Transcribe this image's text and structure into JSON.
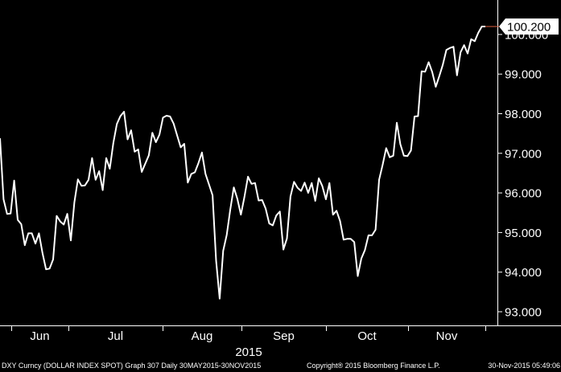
{
  "footer": {
    "left": "DXY Curncy (DOLLAR INDEX SPOT) Graph 307  Daily 30MAY2015-30NOV2015",
    "middle": "Copyright® 2015 Bloomberg Finance L.P.",
    "right": "30-Nov-2015 05:49:06"
  },
  "colors": {
    "background": "#000000",
    "line": "#ffffff",
    "last_box": "#ffffff",
    "last_tick": "#e06040"
  },
  "chart_data": {
    "type": "line",
    "ylim": [
      92.6,
      100.55
    ],
    "yticks": [
      "93.000",
      "94.000",
      "95.000",
      "96.000",
      "97.000",
      "98.000",
      "99.000",
      "100.000"
    ],
    "months": [
      "Jun",
      "Jul",
      "Aug",
      "Sep",
      "Oct",
      "Nov"
    ],
    "year": "2015",
    "last_value_label": "100.200",
    "values": [
      97.38,
      95.84,
      95.47,
      95.48,
      96.31,
      95.32,
      95.21,
      94.68,
      94.98,
      94.98,
      94.72,
      94.98,
      94.48,
      94.07,
      94.09,
      94.32,
      95.42,
      95.28,
      95.2,
      95.47,
      94.8,
      95.76,
      96.34,
      96.18,
      96.19,
      96.33,
      96.88,
      96.33,
      96.55,
      96.07,
      96.88,
      96.61,
      97.26,
      97.74,
      97.94,
      98.05,
      97.35,
      97.58,
      97.04,
      97.1,
      96.53,
      96.74,
      96.95,
      97.52,
      97.28,
      97.47,
      97.9,
      97.95,
      97.93,
      97.75,
      97.45,
      97.15,
      97.24,
      96.26,
      96.48,
      96.52,
      96.75,
      97.02,
      96.48,
      96.21,
      95.94,
      94.29,
      93.33,
      94.54,
      94.94,
      95.58,
      96.14,
      95.85,
      95.45,
      95.9,
      96.41,
      96.23,
      96.25,
      95.81,
      95.82,
      95.6,
      95.23,
      95.18,
      95.43,
      95.53,
      94.57,
      94.85,
      95.91,
      96.28,
      96.13,
      96.05,
      96.26,
      96.0,
      96.25,
      95.8,
      96.37,
      96.17,
      95.84,
      96.25,
      95.45,
      95.55,
      95.29,
      94.82,
      94.84,
      94.84,
      94.76,
      93.9,
      94.34,
      94.56,
      94.93,
      94.93,
      95.07,
      96.33,
      96.71,
      97.13,
      96.9,
      96.94,
      97.77,
      97.23,
      96.94,
      96.93,
      97.07,
      97.93,
      97.94,
      99.07,
      99.06,
      99.3,
      99.05,
      98.68,
      98.95,
      99.24,
      99.61,
      99.66,
      99.69,
      98.97,
      99.55,
      99.73,
      99.52,
      99.88,
      99.83,
      100.04,
      100.2,
      100.2
    ]
  }
}
